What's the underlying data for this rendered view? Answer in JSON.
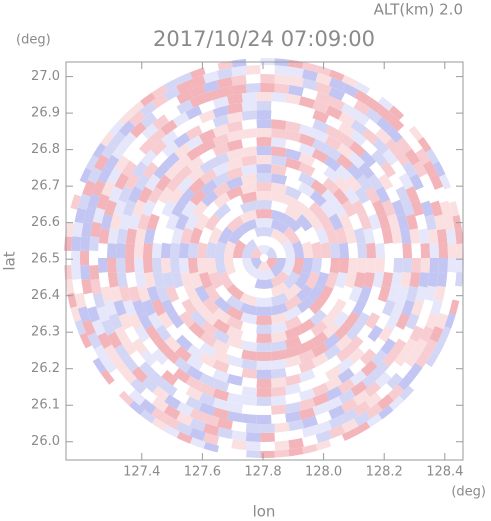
{
  "chart_data": {
    "type": "radar-ppi",
    "title": "2017/10/24 07:09:00",
    "subtitle": "ALT(km) 2.0",
    "x_label": "lon",
    "y_label": "lat",
    "x_unit": "(deg)",
    "y_unit": "(deg)",
    "xlim": [
      127.15,
      128.46
    ],
    "ylim": [
      25.95,
      27.04
    ],
    "xticks": [
      127.4,
      127.6,
      127.8,
      {
        "value": 128,
        "label": "128.0"
      },
      128.2,
      128.4
    ],
    "yticks": [
      {
        "value": 26,
        "label": "26.0"
      },
      26.1,
      26.2,
      26.3,
      26.4,
      26.5,
      26.6,
      26.7,
      26.8,
      26.9,
      {
        "value": 27,
        "label": "27.0"
      }
    ]
  }
}
